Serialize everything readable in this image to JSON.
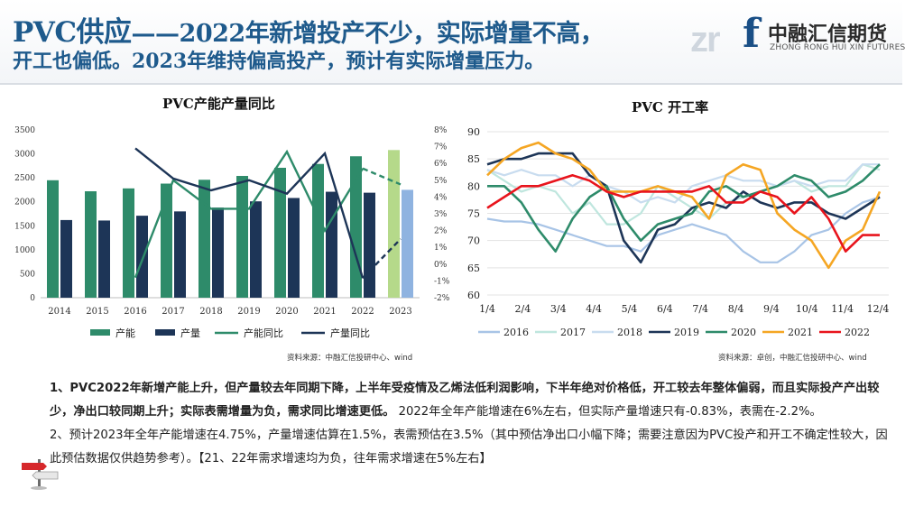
{
  "header": {
    "title_big": "PVC供应",
    "title_rest": "——2022年新增投产不少，实际增量不高，",
    "title_line2": "开工也偏低。2023年维持偏高投产，预计有实际增量压力。"
  },
  "logo": {
    "mark": "zr",
    "letter": "f",
    "name_cn": "中融汇信期货",
    "name_en": "ZHONG RONG HUI XIN FUTURES"
  },
  "colors": {
    "title": "#1e5a8c",
    "capacity": "#2e8b6a",
    "output": "#1d3557",
    "capacity_est": "#b5d98a",
    "output_est": "#8fb3e0"
  },
  "left_source": "资料来源：中融汇信投研中心、wind",
  "right_source": "资料来源：卓创，中融汇信投研中心、wind",
  "notes": {
    "p1_bold": "1、PVC2022年新增产能上升，但产量较去年同期下降，上半年受疫情及乙烯法低利润影响，下半年绝对价格低，开工较去年整体偏弱，而且实际投产产出较少，净出口较同期上升；实际表需增量为负，需求同比增速更低。",
    "p1_tail": "2022年全年产能增速在6%左右，但实际产量增速只有-0.83%，表需在-2.2%。",
    "p2": "2、预计2023年全年产能增速在4.75%，产量增速估算在1.5%，表需预估在3.5%（其中预估净出口小幅下降；需要注意因为PVC投产和开工不确定性较大，因此预估数据仅供趋势参考）。【21、22年需求增速均为负，往年需求增速在5%左右】"
  },
  "chart_data": [
    {
      "type": "bar",
      "title": "PVC产能产量同比",
      "categories": [
        "2014",
        "2015",
        "2016",
        "2017",
        "2018",
        "2019",
        "2020",
        "2021",
        "2022",
        "2023"
      ],
      "ylim": [
        0,
        3500
      ],
      "y_ticks": [
        "0",
        "500",
        "1000",
        "1500",
        "2000",
        "2500",
        "3000",
        "3500"
      ],
      "y2lim": [
        -2,
        8
      ],
      "y2_ticks": [
        "-2%",
        "-1%",
        "0%",
        "1%",
        "2%",
        "3%",
        "4%",
        "5%",
        "6%",
        "7%",
        "8%"
      ],
      "series": [
        {
          "name": "产能",
          "type": "bar",
          "axis": "left",
          "values": [
            2450,
            2220,
            2280,
            2380,
            2460,
            2540,
            2710,
            2790,
            2950,
            3080
          ]
        },
        {
          "name": "产量",
          "type": "bar",
          "axis": "left",
          "values": [
            1620,
            1610,
            1710,
            1800,
            1880,
            2010,
            2080,
            2210,
            2190,
            2250
          ]
        },
        {
          "name": "产能同比",
          "type": "line",
          "axis": "right",
          "values": [
            null,
            null,
            -0.8,
            5.0,
            3.3,
            3.3,
            6.7,
            2.0,
            5.7,
            4.75
          ]
        },
        {
          "name": "产量同比",
          "type": "line",
          "axis": "right",
          "values": [
            null,
            null,
            6.9,
            5.1,
            4.4,
            5.0,
            4.2,
            6.6,
            -0.83,
            1.5
          ]
        }
      ],
      "estimate_category": "2023",
      "legend": "bottom"
    },
    {
      "type": "line",
      "title": "PVC  开工率",
      "x_ticks": [
        "1/4",
        "2/4",
        "3/4",
        "4/4",
        "5/4",
        "6/4",
        "7/4",
        "8/4",
        "9/4",
        "10/4",
        "11/4",
        "12/4"
      ],
      "ylim": [
        60,
        90
      ],
      "y_ticks": [
        "60",
        "65",
        "70",
        "75",
        "80",
        "85",
        "90"
      ],
      "series": [
        {
          "name": "2016",
          "color": "#a8c4e6",
          "values": [
            74,
            73.5,
            73.5,
            73,
            72,
            71,
            70,
            69,
            69,
            68,
            71,
            72,
            73,
            72,
            71,
            68,
            66,
            66,
            68,
            71,
            72,
            75,
            77,
            78
          ]
        },
        {
          "name": "2017",
          "color": "#bfe6de",
          "values": [
            83,
            81,
            79,
            80,
            79,
            75,
            77,
            73,
            73,
            75,
            80,
            78,
            76,
            74,
            77,
            78,
            79,
            80,
            81,
            79,
            80,
            80,
            84,
            83
          ]
        },
        {
          "name": "2018",
          "color": "#c8dcef",
          "values": [
            83,
            82,
            83,
            82,
            82,
            80,
            82,
            80,
            79,
            77,
            78,
            77,
            80,
            81,
            82,
            81,
            81,
            80,
            81,
            80,
            81,
            81,
            84,
            84
          ]
        },
        {
          "name": "2019",
          "color": "#1d3557",
          "values": [
            84,
            85,
            85,
            86,
            86,
            86,
            82,
            80,
            70,
            66,
            72,
            73,
            76,
            77,
            76,
            79,
            77,
            76,
            77,
            77,
            75,
            74,
            76,
            78
          ]
        },
        {
          "name": "2020",
          "color": "#2e8b6a",
          "values": [
            80,
            80,
            77,
            72,
            68,
            74,
            78,
            80,
            74,
            70,
            73,
            74,
            75,
            79,
            80,
            78,
            79,
            80,
            82,
            81,
            78,
            79,
            81,
            84
          ]
        },
        {
          "name": "2021",
          "color": "#f5a623",
          "values": [
            82,
            85,
            87,
            88,
            86,
            85,
            83,
            79,
            79,
            79,
            80,
            79,
            78,
            74,
            82,
            84,
            83,
            75,
            72,
            70,
            65,
            70,
            72,
            79
          ]
        },
        {
          "name": "2022",
          "color": "#e8141c",
          "values": [
            76,
            78,
            80,
            80,
            81,
            82,
            81,
            79,
            78,
            79,
            79,
            79,
            79,
            80,
            77,
            77,
            79,
            78,
            75,
            78,
            74,
            68,
            71,
            71
          ]
        }
      ],
      "legend": "bottom"
    }
  ]
}
